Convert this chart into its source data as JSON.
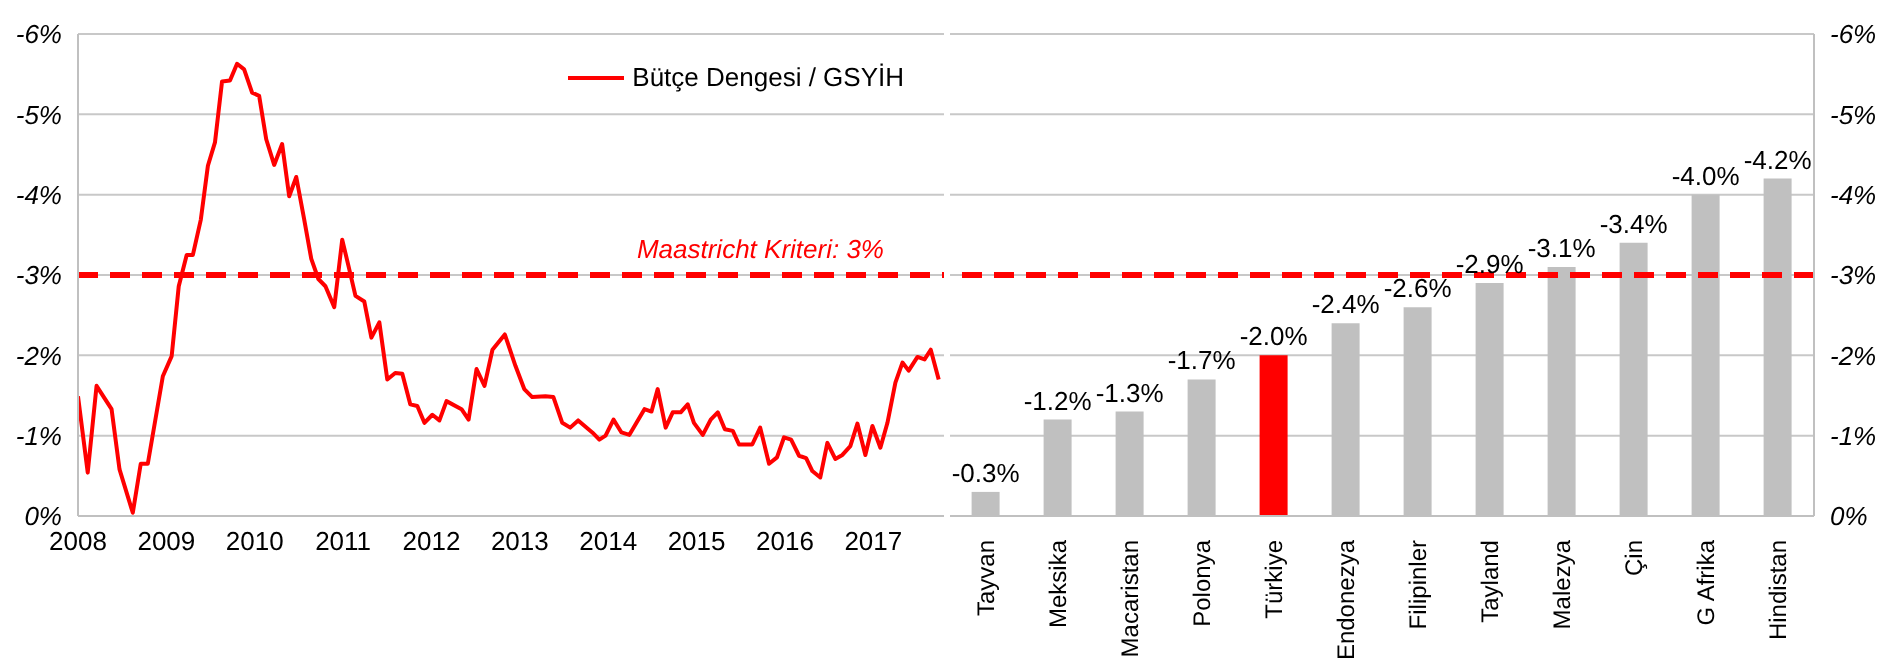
{
  "chart_data": [
    {
      "type": "line",
      "x": [
        2008.0,
        2008.11,
        2008.21,
        2008.38,
        2008.47,
        2008.62,
        2008.71,
        2008.79,
        2008.96,
        2009.06,
        2009.14,
        2009.23,
        2009.3,
        2009.39,
        2009.47,
        2009.55,
        2009.63,
        2009.72,
        2009.8,
        2009.88,
        2009.97,
        2010.05,
        2010.13,
        2010.22,
        2010.31,
        2010.39,
        2010.47,
        2010.56,
        2010.64,
        2010.72,
        2010.8,
        2010.9,
        2010.99,
        2011.07,
        2011.14,
        2011.24,
        2011.32,
        2011.41,
        2011.5,
        2011.59,
        2011.67,
        2011.76,
        2011.84,
        2011.92,
        2012.01,
        2012.09,
        2012.17,
        2012.34,
        2012.42,
        2012.51,
        2012.6,
        2012.69,
        2012.83,
        2012.95,
        2013.05,
        2013.14,
        2013.29,
        2013.38,
        2013.48,
        2013.57,
        2013.66,
        2013.82,
        2013.9,
        2013.97,
        2014.06,
        2014.15,
        2014.24,
        2014.41,
        2014.49,
        2014.56,
        2014.65,
        2014.73,
        2014.82,
        2014.9,
        2014.97,
        2015.07,
        2015.16,
        2015.24,
        2015.32,
        2015.41,
        2015.48,
        2015.63,
        2015.72,
        2015.82,
        2015.91,
        2015.99,
        2016.07,
        2016.16,
        2016.24,
        2016.31,
        2016.4,
        2016.48,
        2016.57,
        2016.65,
        2016.74,
        2016.82,
        2016.91,
        2016.99,
        2017.08,
        2017.16,
        2017.25,
        2017.33,
        2017.4,
        2017.5,
        2017.58,
        2017.65,
        2017.74
      ],
      "series": [
        {
          "name": "Bütçe Dengesi / GSYİH",
          "color": "#ff0000",
          "values": [
            -1.49,
            -0.54,
            -1.62,
            -1.33,
            -0.58,
            -0.04,
            -0.65,
            -0.65,
            -1.74,
            -1.99,
            -2.86,
            -3.25,
            -3.25,
            -3.69,
            -4.36,
            -4.65,
            -5.41,
            -5.42,
            -5.63,
            -5.56,
            -5.27,
            -5.23,
            -4.69,
            -4.37,
            -4.63,
            -3.98,
            -4.22,
            -3.69,
            -3.2,
            -2.95,
            -2.86,
            -2.6,
            -3.44,
            -3.07,
            -2.74,
            -2.67,
            -2.22,
            -2.41,
            -1.7,
            -1.78,
            -1.77,
            -1.39,
            -1.37,
            -1.16,
            -1.26,
            -1.19,
            -1.43,
            -1.33,
            -1.2,
            -1.83,
            -1.62,
            -2.07,
            -2.26,
            -1.87,
            -1.58,
            -1.48,
            -1.49,
            -1.48,
            -1.16,
            -1.1,
            -1.19,
            -1.04,
            -0.95,
            -1.0,
            -1.2,
            -1.04,
            -1.01,
            -1.33,
            -1.3,
            -1.58,
            -1.1,
            -1.29,
            -1.29,
            -1.39,
            -1.16,
            -1.01,
            -1.2,
            -1.29,
            -1.08,
            -1.06,
            -0.89,
            -0.89,
            -1.1,
            -0.65,
            -0.73,
            -0.98,
            -0.95,
            -0.75,
            -0.72,
            -0.56,
            -0.48,
            -0.91,
            -0.71,
            -0.76,
            -0.87,
            -1.15,
            -0.76,
            -1.12,
            -0.85,
            -1.16,
            -1.66,
            -1.91,
            -1.81,
            -1.98,
            -1.95,
            -2.07,
            -1.7
          ]
        }
      ],
      "xlim": [
        2008,
        2017.8
      ],
      "xticks": [
        2008,
        2009,
        2010,
        2011,
        2012,
        2013,
        2014,
        2015,
        2016,
        2017
      ],
      "ylim": [
        0,
        -6
      ],
      "yticks": [
        {
          "value": 0,
          "label": "0%"
        },
        {
          "value": -1,
          "label": "-1%"
        },
        {
          "value": -2,
          "label": "-2%"
        },
        {
          "value": -3,
          "label": "-3%"
        },
        {
          "value": -4,
          "label": "-4%"
        },
        {
          "value": -5,
          "label": "-5%"
        },
        {
          "value": -6,
          "label": "-6%"
        }
      ],
      "grid": "y",
      "legend": "top right",
      "marker": "none",
      "line_style": "solid",
      "annotations": [
        "Maastricht Kriteri: 3%"
      ],
      "ref_lines": [
        {
          "axis": "y",
          "value": -3,
          "color": "#ff0000",
          "line_style": "dashed"
        }
      ]
    },
    {
      "type": "bar",
      "categories": [
        "Tayvan",
        "Meksika",
        "Macaristan",
        "Polonya",
        "Türkiye",
        "Endonezya",
        "Filipinler",
        "Tayland",
        "Malezya",
        "Çin",
        "G Afrika",
        "Hindistan"
      ],
      "series": [
        {
          "axis": "y2",
          "values": [
            -0.3,
            -1.2,
            -1.3,
            -1.7,
            -2.0,
            -2.4,
            -2.6,
            -2.9,
            -3.1,
            -3.4,
            -4.0,
            -4.2
          ],
          "colors": [
            "#c0c0c0",
            "#c0c0c0",
            "#c0c0c0",
            "#c0c0c0",
            "#ff0000",
            "#c0c0c0",
            "#c0c0c0",
            "#c0c0c0",
            "#c0c0c0",
            "#c0c0c0",
            "#c0c0c0",
            "#c0c0c0"
          ],
          "value_labels": [
            "-0.3%",
            "-1.2%",
            "-1.3%",
            "-1.7%",
            "-2.0%",
            "-2.4%",
            "-2.6%",
            "-2.9%",
            "-3.1%",
            "-3.4%",
            "-4.0%",
            "-4.2%"
          ]
        }
      ],
      "y2lim": [
        0,
        -6
      ],
      "y2ticks": [
        {
          "value": 0,
          "label": "0%"
        },
        {
          "value": -1,
          "label": "-1%"
        },
        {
          "value": -2,
          "label": "-2%"
        },
        {
          "value": -3,
          "label": "-3%"
        },
        {
          "value": -4,
          "label": "-4%"
        },
        {
          "value": -5,
          "label": "-5%"
        },
        {
          "value": -6,
          "label": "-6%"
        }
      ],
      "grid": "y",
      "ref_lines": [
        {
          "axis": "y2",
          "value": -3,
          "color": "#ff0000",
          "line_style": "dashed"
        }
      ]
    }
  ]
}
